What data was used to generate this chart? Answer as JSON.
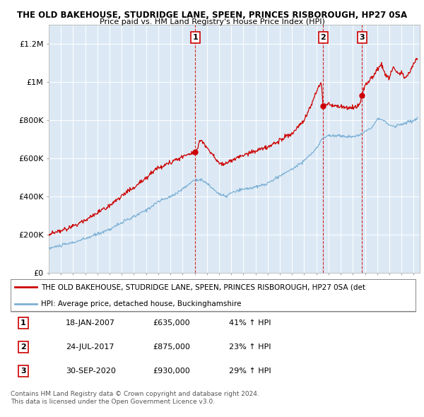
{
  "title1": "THE OLD BAKEHOUSE, STUDRIDGE LANE, SPEEN, PRINCES RISBOROUGH, HP27 0SA",
  "title2": "Price paid vs. HM Land Registry's House Price Index (HPI)",
  "bg_color": "#dce9f5",
  "red_color": "#cc0000",
  "blue_color": "#7bafd4",
  "ylim": [
    0,
    1300000
  ],
  "yticks": [
    0,
    200000,
    400000,
    600000,
    800000,
    1000000,
    1200000
  ],
  "ytick_labels": [
    "£0",
    "£200K",
    "£400K",
    "£600K",
    "£800K",
    "£1M",
    "£1.2M"
  ],
  "legend1": "THE OLD BAKEHOUSE, STUDRIDGE LANE, SPEEN, PRINCES RISBOROUGH, HP27 0SA (det",
  "legend2": "HPI: Average price, detached house, Buckinghamshire",
  "transactions": [
    {
      "num": 1,
      "date": "18-JAN-2007",
      "price": "£635,000",
      "pct": "41%",
      "dir": "↑",
      "year": 2007.05,
      "val": 635000
    },
    {
      "num": 2,
      "date": "24-JUL-2017",
      "price": "£875,000",
      "pct": "23%",
      "dir": "↑",
      "year": 2017.56,
      "val": 875000
    },
    {
      "num": 3,
      "date": "30-SEP-2020",
      "price": "£930,000",
      "pct": "29%",
      "dir": "↑",
      "year": 2020.75,
      "val": 930000
    }
  ],
  "footer1": "Contains HM Land Registry data © Crown copyright and database right 2024.",
  "footer2": "This data is licensed under the Open Government Licence v3.0.",
  "xmin": 1995,
  "xmax": 2025.5
}
